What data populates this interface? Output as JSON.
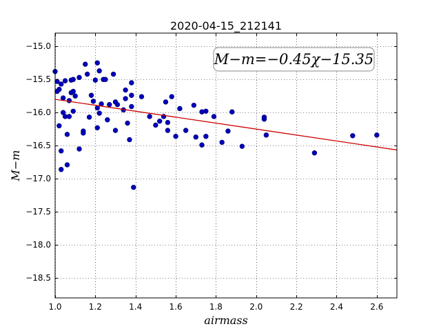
{
  "chart_data": {
    "type": "scatter",
    "title": "2020-04-15_212141",
    "xlabel": "airmass",
    "ylabel": "M−m",
    "xlim": [
      1.0,
      2.7
    ],
    "ylim": [
      -18.8,
      -14.8
    ],
    "y_inverted": true,
    "grid": true,
    "x_ticks": [
      "1.0",
      "1.2",
      "1.4",
      "1.6",
      "1.8",
      "2.0",
      "2.2",
      "2.4",
      "2.6"
    ],
    "x_tick_values": [
      1.0,
      1.2,
      1.4,
      1.6,
      1.8,
      2.0,
      2.2,
      2.4,
      2.6
    ],
    "y_ticks": [
      "−15.0",
      "−15.5",
      "−16.0",
      "−16.5",
      "−17.0",
      "−17.5",
      "−18.0",
      "−18.5"
    ],
    "y_tick_values": [
      -15.0,
      -15.5,
      -16.0,
      -16.5,
      -17.0,
      -17.5,
      -18.0,
      -18.5
    ],
    "annotation": "M−m=−0.45χ−15.35",
    "annotation_placement": "top-right",
    "fit": {
      "slope": -0.45,
      "intercept": -15.35,
      "color": "#cc0000"
    },
    "point_color": "#0000bb",
    "points": [
      [
        1.0,
        -15.38
      ],
      [
        1.01,
        -15.68
      ],
      [
        1.02,
        -15.65
      ],
      [
        1.01,
        -15.53
      ],
      [
        1.03,
        -15.57
      ],
      [
        1.02,
        -16.2
      ],
      [
        1.04,
        -15.78
      ],
      [
        1.04,
        -16.0
      ],
      [
        1.05,
        -15.52
      ],
      [
        1.05,
        -16.06
      ],
      [
        1.03,
        -16.58
      ],
      [
        1.03,
        -16.86
      ],
      [
        1.06,
        -16.33
      ],
      [
        1.06,
        -16.79
      ],
      [
        1.07,
        -16.06
      ],
      [
        1.07,
        -15.82
      ],
      [
        1.08,
        -15.7
      ],
      [
        1.08,
        -15.51
      ],
      [
        1.09,
        -15.5
      ],
      [
        1.09,
        -15.68
      ],
      [
        1.09,
        -15.98
      ],
      [
        1.1,
        -15.75
      ],
      [
        1.12,
        -15.47
      ],
      [
        1.12,
        -16.55
      ],
      [
        1.14,
        -16.28
      ],
      [
        1.14,
        -16.31
      ],
      [
        1.15,
        -15.27
      ],
      [
        1.16,
        -15.42
      ],
      [
        1.17,
        -16.07
      ],
      [
        1.18,
        -15.74
      ],
      [
        1.19,
        -15.83
      ],
      [
        1.2,
        -15.51
      ],
      [
        1.21,
        -15.25
      ],
      [
        1.21,
        -16.23
      ],
      [
        1.21,
        -15.93
      ],
      [
        1.22,
        -15.37
      ],
      [
        1.22,
        -16.01
      ],
      [
        1.23,
        -15.87
      ],
      [
        1.24,
        -15.5
      ],
      [
        1.25,
        -15.5
      ],
      [
        1.26,
        -16.11
      ],
      [
        1.27,
        -15.88
      ],
      [
        1.29,
        -15.42
      ],
      [
        1.3,
        -16.27
      ],
      [
        1.3,
        -15.84
      ],
      [
        1.31,
        -15.88
      ],
      [
        1.34,
        -15.96
      ],
      [
        1.35,
        -15.79
      ],
      [
        1.35,
        -15.66
      ],
      [
        1.36,
        -16.16
      ],
      [
        1.37,
        -16.41
      ],
      [
        1.38,
        -15.91
      ],
      [
        1.38,
        -15.74
      ],
      [
        1.38,
        -15.55
      ],
      [
        1.39,
        -17.13
      ],
      [
        1.43,
        -15.76
      ],
      [
        1.47,
        -16.06
      ],
      [
        1.5,
        -16.19
      ],
      [
        1.52,
        -16.13
      ],
      [
        1.54,
        -16.06
      ],
      [
        1.55,
        -15.84
      ],
      [
        1.56,
        -16.15
      ],
      [
        1.56,
        -16.27
      ],
      [
        1.58,
        -15.76
      ],
      [
        1.6,
        -16.36
      ],
      [
        1.62,
        -15.94
      ],
      [
        1.65,
        -16.27
      ],
      [
        1.69,
        -15.89
      ],
      [
        1.7,
        -16.37
      ],
      [
        1.73,
        -15.99
      ],
      [
        1.73,
        -16.49
      ],
      [
        1.75,
        -15.98
      ],
      [
        1.75,
        -16.36
      ],
      [
        1.79,
        -16.06
      ],
      [
        1.83,
        -16.45
      ],
      [
        1.86,
        -16.28
      ],
      [
        1.88,
        -15.99
      ],
      [
        1.93,
        -16.51
      ],
      [
        2.04,
        -16.1
      ],
      [
        2.04,
        -16.07
      ],
      [
        2.05,
        -16.34
      ],
      [
        2.29,
        -16.61
      ],
      [
        2.48,
        -16.35
      ],
      [
        2.6,
        -16.34
      ]
    ]
  }
}
